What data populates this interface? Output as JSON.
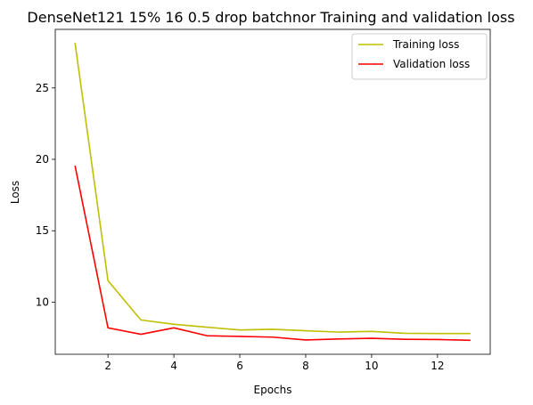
{
  "chart_data": {
    "type": "line",
    "title": "DenseNet121 15% 16 0.5 drop batchnor Training and validation loss",
    "xlabel": "Epochs",
    "ylabel": "Loss",
    "xlim": [
      0.4,
      13.6
    ],
    "ylim": [
      6.35,
      29.1
    ],
    "x_ticks": [
      2,
      4,
      6,
      8,
      10,
      12
    ],
    "y_ticks": [
      10,
      15,
      20,
      25
    ],
    "grid": false,
    "legend_position": "upper right",
    "x": [
      1,
      2,
      3,
      4,
      5,
      6,
      7,
      8,
      9,
      10,
      11,
      12,
      13
    ],
    "series": [
      {
        "name": "Training loss",
        "color": "#bfbf00",
        "values": [
          28.15,
          11.5,
          8.75,
          8.45,
          8.25,
          8.05,
          8.1,
          8.0,
          7.9,
          7.95,
          7.82,
          7.8,
          7.8
        ]
      },
      {
        "name": "Validation loss",
        "color": "#ff0000",
        "values": [
          19.55,
          8.2,
          7.75,
          8.2,
          7.65,
          7.6,
          7.55,
          7.35,
          7.42,
          7.47,
          7.4,
          7.38,
          7.33
        ]
      }
    ]
  }
}
